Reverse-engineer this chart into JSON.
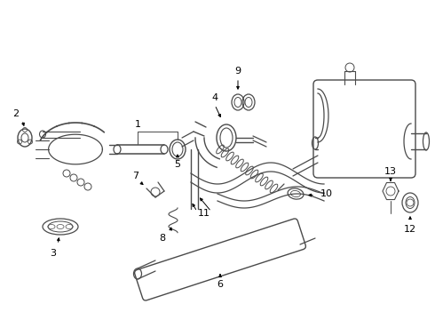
{
  "bg_color": "#ffffff",
  "lc": "#4a4a4a",
  "tc": "#000000",
  "figsize": [
    4.9,
    3.6
  ],
  "dpi": 100
}
